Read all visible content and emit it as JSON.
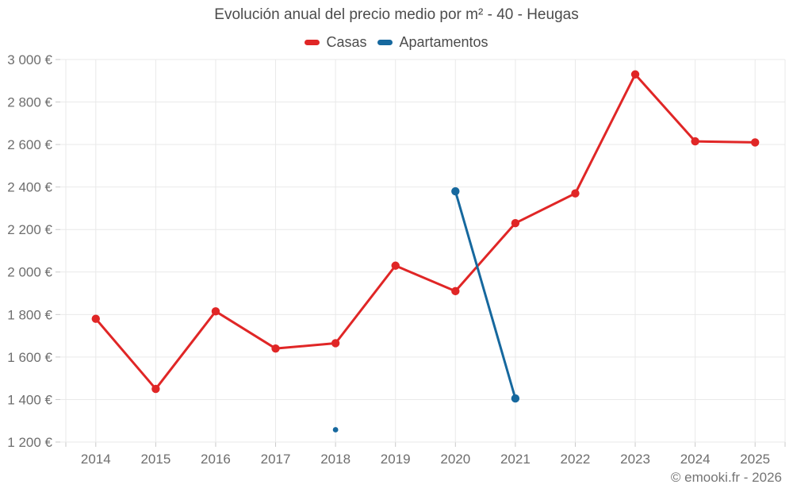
{
  "title": "Evolución anual del precio medio por m² - 40 - Heugas",
  "footer": "© emooki.fr - 2026",
  "colors": {
    "background": "#ffffff",
    "grid": "#e9e9e9",
    "axis_tick": "#c9c9c9",
    "tick_text": "#6e6e6e",
    "title_text": "#4c4c4c",
    "footer_text": "#757575",
    "casas": "#e02626",
    "apartamentos": "#16689e"
  },
  "chart_data": {
    "type": "line",
    "title": "Evolución anual del precio medio por m² - 40 - Heugas",
    "categories": [
      "2014",
      "2015",
      "2016",
      "2017",
      "2018",
      "2019",
      "2020",
      "2021",
      "2022",
      "2023",
      "2024",
      "2025"
    ],
    "series": [
      {
        "name": "Casas",
        "color": "#e02626",
        "values": [
          1780,
          1450,
          1815,
          1640,
          1665,
          2030,
          1910,
          2230,
          2370,
          2930,
          2615,
          2610
        ]
      },
      {
        "name": "Apartamentos",
        "color": "#16689e",
        "values": [
          null,
          null,
          null,
          null,
          1258,
          null,
          2380,
          1405,
          null,
          null,
          null,
          null
        ]
      }
    ],
    "xlabel": "",
    "ylabel": "€",
    "ylim": [
      1200,
      3000
    ],
    "ytick_step": 200,
    "ytick_labels": [
      "1 200 €",
      "1 400 €",
      "1 600 €",
      "1 800 €",
      "2 000 €",
      "2 200 €",
      "2 400 €",
      "2 600 €",
      "2 800 €",
      "3 000 €"
    ],
    "grid": true,
    "legend_position": "top"
  }
}
